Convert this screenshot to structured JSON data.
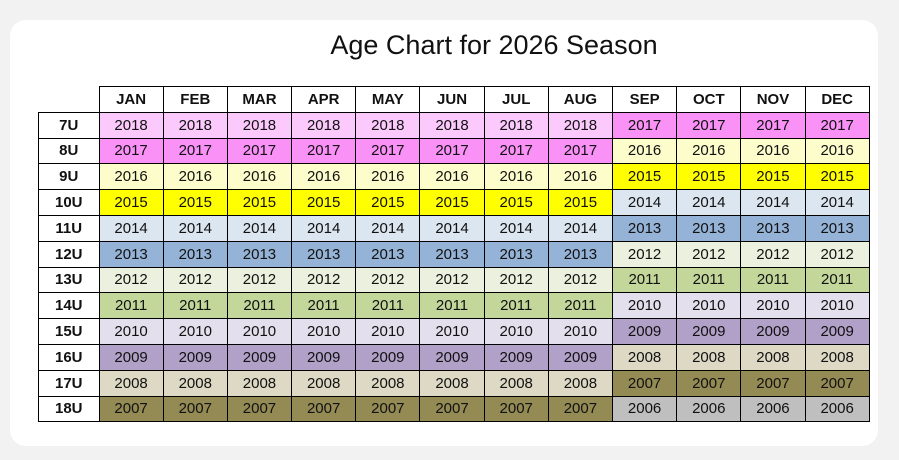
{
  "title": "Age Chart for 2026 Season",
  "columns": [
    "JAN",
    "FEB",
    "MAR",
    "APR",
    "MAY",
    "JUN",
    "JUL",
    "AUG",
    "SEP",
    "OCT",
    "NOV",
    "DEC"
  ],
  "rows": [
    {
      "label": "7U",
      "cells": [
        2018,
        2018,
        2018,
        2018,
        2018,
        2018,
        2018,
        2018,
        2017,
        2017,
        2017,
        2017
      ],
      "colors": [
        "#fcc9fc",
        "#fcc9fc",
        "#fcc9fc",
        "#fcc9fc",
        "#fcc9fc",
        "#fcc9fc",
        "#fcc9fc",
        "#fcc9fc",
        "#f991f7",
        "#f991f7",
        "#f991f7",
        "#f991f7"
      ]
    },
    {
      "label": "8U",
      "cells": [
        2017,
        2017,
        2017,
        2017,
        2017,
        2017,
        2017,
        2017,
        2016,
        2016,
        2016,
        2016
      ],
      "colors": [
        "#f991f7",
        "#f991f7",
        "#f991f7",
        "#f991f7",
        "#f991f7",
        "#f991f7",
        "#f991f7",
        "#f991f7",
        "#fdfdcc",
        "#fdfdcc",
        "#fdfdcc",
        "#fdfdcc"
      ]
    },
    {
      "label": "9U",
      "cells": [
        2016,
        2016,
        2016,
        2016,
        2016,
        2016,
        2016,
        2016,
        2015,
        2015,
        2015,
        2015
      ],
      "colors": [
        "#fdfdcc",
        "#fdfdcc",
        "#fdfdcc",
        "#fdfdcc",
        "#fdfdcc",
        "#fdfdcc",
        "#fdfdcc",
        "#fdfdcc",
        "#ffff00",
        "#ffff00",
        "#ffff00",
        "#ffff00"
      ]
    },
    {
      "label": "10U",
      "cells": [
        2015,
        2015,
        2015,
        2015,
        2015,
        2015,
        2015,
        2015,
        2014,
        2014,
        2014,
        2014
      ],
      "colors": [
        "#ffff00",
        "#ffff00",
        "#ffff00",
        "#ffff00",
        "#ffff00",
        "#ffff00",
        "#ffff00",
        "#ffff00",
        "#dce6f1",
        "#dce6f1",
        "#dce6f1",
        "#dce6f1"
      ]
    },
    {
      "label": "11U",
      "cells": [
        2014,
        2014,
        2014,
        2014,
        2014,
        2014,
        2014,
        2014,
        2013,
        2013,
        2013,
        2013
      ],
      "colors": [
        "#dce6f1",
        "#dce6f1",
        "#dce6f1",
        "#dce6f1",
        "#dce6f1",
        "#dce6f1",
        "#dce6f1",
        "#dce6f1",
        "#95b3d7",
        "#95b3d7",
        "#95b3d7",
        "#95b3d7"
      ]
    },
    {
      "label": "12U",
      "cells": [
        2013,
        2013,
        2013,
        2013,
        2013,
        2013,
        2013,
        2013,
        2012,
        2012,
        2012,
        2012
      ],
      "colors": [
        "#95b3d7",
        "#95b3d7",
        "#95b3d7",
        "#95b3d7",
        "#95b3d7",
        "#95b3d7",
        "#95b3d7",
        "#95b3d7",
        "#ebf1de",
        "#ebf1de",
        "#ebf1de",
        "#ebf1de"
      ]
    },
    {
      "label": "13U",
      "cells": [
        2012,
        2012,
        2012,
        2012,
        2012,
        2012,
        2012,
        2012,
        2011,
        2011,
        2011,
        2011
      ],
      "colors": [
        "#ebf1de",
        "#ebf1de",
        "#ebf1de",
        "#ebf1de",
        "#ebf1de",
        "#ebf1de",
        "#ebf1de",
        "#ebf1de",
        "#c4d79b",
        "#c4d79b",
        "#c4d79b",
        "#c4d79b"
      ]
    },
    {
      "label": "14U",
      "cells": [
        2011,
        2011,
        2011,
        2011,
        2011,
        2011,
        2011,
        2011,
        2010,
        2010,
        2010,
        2010
      ],
      "colors": [
        "#c4d79b",
        "#c4d79b",
        "#c4d79b",
        "#c4d79b",
        "#c4d79b",
        "#c4d79b",
        "#c4d79b",
        "#c4d79b",
        "#e4dfec",
        "#e4dfec",
        "#e4dfec",
        "#e4dfec"
      ]
    },
    {
      "label": "15U",
      "cells": [
        2010,
        2010,
        2010,
        2010,
        2010,
        2010,
        2010,
        2010,
        2009,
        2009,
        2009,
        2009
      ],
      "colors": [
        "#e4dfec",
        "#e4dfec",
        "#e4dfec",
        "#e4dfec",
        "#e4dfec",
        "#e4dfec",
        "#e4dfec",
        "#e4dfec",
        "#b1a0c7",
        "#b1a0c7",
        "#b1a0c7",
        "#b1a0c7"
      ]
    },
    {
      "label": "16U",
      "cells": [
        2009,
        2009,
        2009,
        2009,
        2009,
        2009,
        2009,
        2009,
        2008,
        2008,
        2008,
        2008
      ],
      "colors": [
        "#b1a0c7",
        "#b1a0c7",
        "#b1a0c7",
        "#b1a0c7",
        "#b1a0c7",
        "#b1a0c7",
        "#b1a0c7",
        "#b1a0c7",
        "#ddd9c4",
        "#ddd9c4",
        "#ddd9c4",
        "#ddd9c4"
      ]
    },
    {
      "label": "17U",
      "cells": [
        2008,
        2008,
        2008,
        2008,
        2008,
        2008,
        2008,
        2008,
        2007,
        2007,
        2007,
        2007
      ],
      "colors": [
        "#ddd9c4",
        "#ddd9c4",
        "#ddd9c4",
        "#ddd9c4",
        "#ddd9c4",
        "#ddd9c4",
        "#ddd9c4",
        "#ddd9c4",
        "#948a54",
        "#948a54",
        "#948a54",
        "#948a54"
      ]
    },
    {
      "label": "18U",
      "cells": [
        2007,
        2007,
        2007,
        2007,
        2007,
        2007,
        2007,
        2007,
        2006,
        2006,
        2006,
        2006
      ],
      "colors": [
        "#948a54",
        "#948a54",
        "#948a54",
        "#948a54",
        "#948a54",
        "#948a54",
        "#948a54",
        "#948a54",
        "#bfbfbf",
        "#bfbfbf",
        "#bfbfbf",
        "#bfbfbf"
      ]
    }
  ]
}
